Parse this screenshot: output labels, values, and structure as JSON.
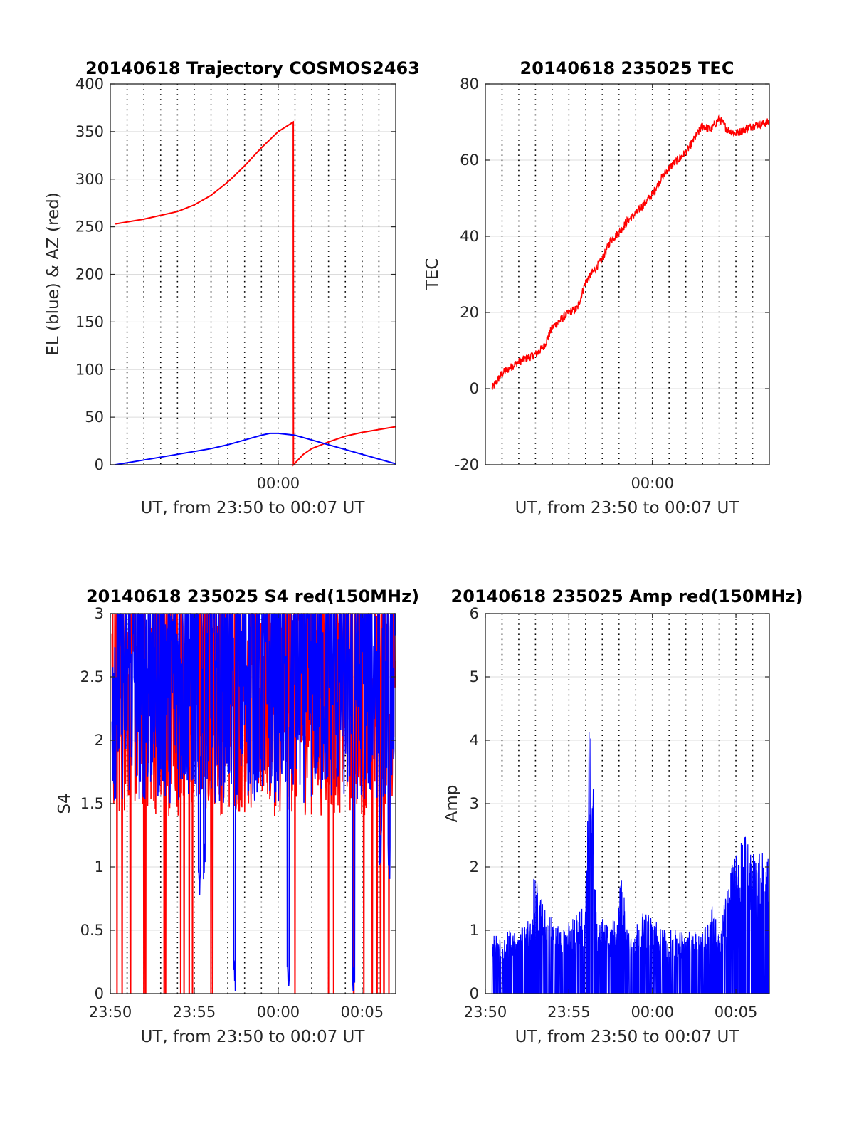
{
  "figure": {
    "background": "#ffffff",
    "grid_color": "#000000",
    "axis_color": "#262626"
  },
  "chart_data": [
    {
      "type": "line",
      "title": "20140618 Trajectory COSMOS2463",
      "xlabel": "UT, from 23:50 to 00:07 UT",
      "ylabel": "EL (blue) & AZ (red)",
      "xlim_min": [
        -10,
        7
      ],
      "ylim": [
        0,
        400
      ],
      "yticks": [
        "0",
        "50",
        "100",
        "150",
        "200",
        "250",
        "300",
        "350",
        "400"
      ],
      "yticks_values": [
        0,
        50,
        100,
        150,
        200,
        250,
        300,
        350,
        400
      ],
      "xtick_labels": [
        {
          "t": 0,
          "label": "00:00"
        }
      ],
      "grid": "dotted vertical every minute, horizontal at y ticks",
      "series": [
        {
          "color": "#ff0000",
          "x": [
            -9.7,
            -8,
            -6,
            -5,
            -4,
            -3,
            -2,
            -1,
            0,
            0.9,
            0.91,
            1.5,
            2,
            3,
            4,
            5,
            6,
            7
          ],
          "values": [
            253,
            258,
            266,
            273,
            283,
            297,
            314,
            333,
            350,
            360,
            0,
            11,
            17,
            24,
            30,
            34,
            37,
            40
          ]
        },
        {
          "color": "#0000ff",
          "x": [
            -9.7,
            -8,
            -6,
            -4,
            -3,
            -2,
            -1,
            -0.5,
            0,
            1,
            2,
            3,
            4,
            5,
            6,
            7
          ],
          "values": [
            0,
            5,
            11,
            17,
            21,
            26,
            31,
            33,
            33,
            31,
            26,
            21,
            16,
            11,
            6,
            1
          ]
        }
      ]
    },
    {
      "type": "line",
      "title": "20140618 235025 TEC",
      "xlabel": "UT, from 23:50 to 00:07 UT",
      "ylabel": "TEC",
      "xlim_min": [
        -10,
        7
      ],
      "ylim": [
        -20,
        80
      ],
      "yticks": [
        "-20",
        "0",
        "20",
        "40",
        "60",
        "80"
      ],
      "yticks_values": [
        -20,
        0,
        20,
        40,
        60,
        80
      ],
      "xtick_labels": [
        {
          "t": 0,
          "label": "00:00"
        }
      ],
      "series": [
        {
          "color": "#ff0000",
          "x": [
            -9.6,
            -9,
            -8,
            -7,
            -6.5,
            -6,
            -5,
            -4.5,
            -4,
            -3.5,
            -3,
            -2.5,
            -2,
            -1.5,
            -1,
            0,
            0.5,
            1,
            2,
            3,
            3.5,
            4,
            4.5,
            5,
            5.5,
            6,
            7
          ],
          "values": [
            0,
            4,
            7,
            9,
            11,
            16,
            20,
            21,
            28,
            31,
            34,
            39,
            41,
            44,
            46,
            51,
            55,
            58,
            62,
            69,
            68,
            71,
            68,
            67,
            68,
            69,
            70
          ]
        }
      ]
    },
    {
      "type": "line",
      "title": "20140618 235025 S4 red(150MHz)",
      "xlabel": "UT, from 23:50 to 00:07 UT",
      "ylabel": "S4",
      "xlim_min": [
        -10,
        7
      ],
      "ylim": [
        0,
        3
      ],
      "yticks": [
        "0",
        "0.5",
        "1",
        "1.5",
        "2",
        "2.5",
        "3"
      ],
      "yticks_values": [
        0,
        0.5,
        1,
        1.5,
        2,
        2.5,
        3
      ],
      "xtick_labels": [
        {
          "t": -10,
          "label": "23:50"
        },
        {
          "t": -5,
          "label": "23:55"
        },
        {
          "t": 0,
          "label": "00:00"
        },
        {
          "t": 5,
          "label": "00:05"
        }
      ],
      "series": [
        {
          "color": "#ff0000",
          "x_range": [
            -9.9,
            7
          ],
          "band_low": 1.4,
          "band_high": 3.0,
          "drops_to_zero_at": [
            -9.6,
            -9.3,
            -8.8,
            -8.0,
            -7.9,
            -6.8,
            -6.7,
            -5.8,
            -5.6,
            -5.3,
            -5.1,
            -4.0,
            -3.9,
            1.0,
            3.0,
            3.3,
            4.5,
            5.1,
            5.6,
            5.9,
            6.1,
            6.3,
            6.6
          ]
        },
        {
          "color": "#0000ff",
          "x_range": [
            -9.9,
            7
          ],
          "band_low": 1.5,
          "band_high": 3.0,
          "dips": [
            {
              "t": -4.7,
              "v": 0.7
            },
            {
              "t": -4.4,
              "v": 0.9
            },
            {
              "t": -2.6,
              "v": 0
            },
            {
              "t": 0.6,
              "v": 0
            },
            {
              "t": 4.5,
              "v": 0
            },
            {
              "t": 6.1,
              "v": 1.0
            },
            {
              "t": 6.6,
              "v": 0.9
            }
          ]
        }
      ]
    },
    {
      "type": "line",
      "title": "20140618 235025 Amp red(150MHz)",
      "xlabel": "UT, from 23:50 to 00:07 UT",
      "ylabel": "Amp",
      "xlim_min": [
        -10,
        7
      ],
      "ylim": [
        0,
        6
      ],
      "yticks": [
        "0",
        "1",
        "2",
        "3",
        "4",
        "5",
        "6"
      ],
      "yticks_values": [
        0,
        1,
        2,
        3,
        4,
        5,
        6
      ],
      "xtick_labels": [
        {
          "t": -10,
          "label": "23:50"
        },
        {
          "t": -5,
          "label": "23:55"
        },
        {
          "t": 0,
          "label": "00:00"
        },
        {
          "t": 5,
          "label": "00:05"
        }
      ],
      "series": [
        {
          "color": "#0000ff",
          "x_range": [
            -9.6,
            7
          ],
          "envelope_t": [
            -9.6,
            -8.5,
            -7.5,
            -7.0,
            -6.8,
            -6.2,
            -5.5,
            -4.0,
            -3.8,
            -3.6,
            -3.4,
            -3.2,
            -3.0,
            -2.5,
            -1.8,
            -1.6,
            -1.5,
            -1.3,
            -0.5,
            1.0,
            3.0,
            3.5,
            3.8,
            4.0,
            4.8,
            5.5,
            6.0,
            7.0
          ],
          "envelope_v": [
            0.9,
            1.0,
            1.1,
            2.0,
            1.6,
            1.3,
            1.0,
            1.4,
            4.4,
            4.1,
            1.4,
            1.0,
            1.3,
            1.0,
            1.9,
            1.3,
            1.1,
            1.0,
            1.3,
            1.0,
            1.0,
            1.5,
            1.2,
            1.0,
            2.1,
            2.6,
            2.2,
            2.3
          ]
        }
      ]
    }
  ]
}
